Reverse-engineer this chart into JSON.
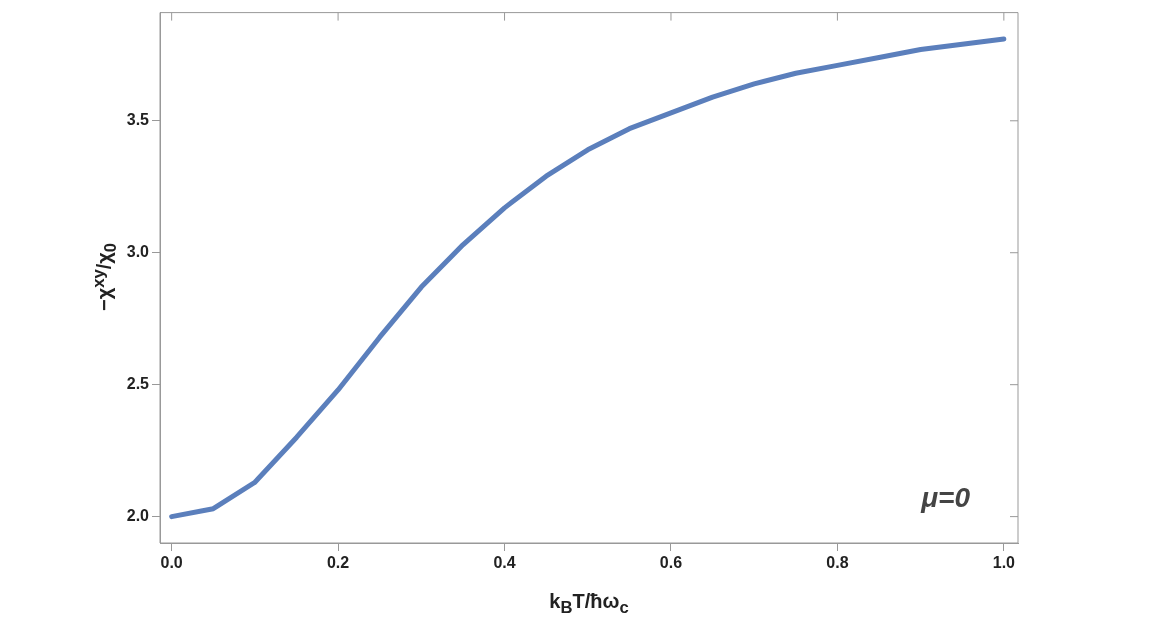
{
  "chart_data": {
    "type": "line",
    "xlabel": "k$_{B}$T/ħω$_{c}$",
    "ylabel": "−χ$^{xy}$/χ$_{0}$",
    "x": [
      0,
      0.05,
      0.1,
      0.15,
      0.2,
      0.25,
      0.3,
      0.35,
      0.4,
      0.45,
      0.5,
      0.55,
      0.6,
      0.65,
      0.7,
      0.75,
      0.8,
      0.85,
      0.9,
      0.95,
      1.0
    ],
    "series": [
      {
        "color": "#5b7fbc",
        "values": [
          2.0,
          2.03,
          2.13,
          2.3,
          2.48,
          2.68,
          2.87,
          3.03,
          3.17,
          3.29,
          3.39,
          3.47,
          3.53,
          3.59,
          3.64,
          3.68,
          3.71,
          3.74,
          3.77,
          3.79,
          3.81
        ]
      }
    ],
    "xlim": [
      -0.014,
      1.017
    ],
    "ylim": [
      1.9,
      3.91
    ],
    "xticks": [
      {
        "value": 0,
        "label": "0.0"
      },
      0.2,
      0.4,
      0.6,
      0.8,
      {
        "value": 1,
        "label": "1.0"
      }
    ],
    "yticks": [
      {
        "value": 2,
        "label": "2.0"
      },
      2.5,
      {
        "value": 3,
        "label": "3.0"
      },
      3.5
    ],
    "annotations": [
      "μ=0"
    ],
    "grid": false,
    "legend": false,
    "marker": "none",
    "line_style": "solid"
  }
}
